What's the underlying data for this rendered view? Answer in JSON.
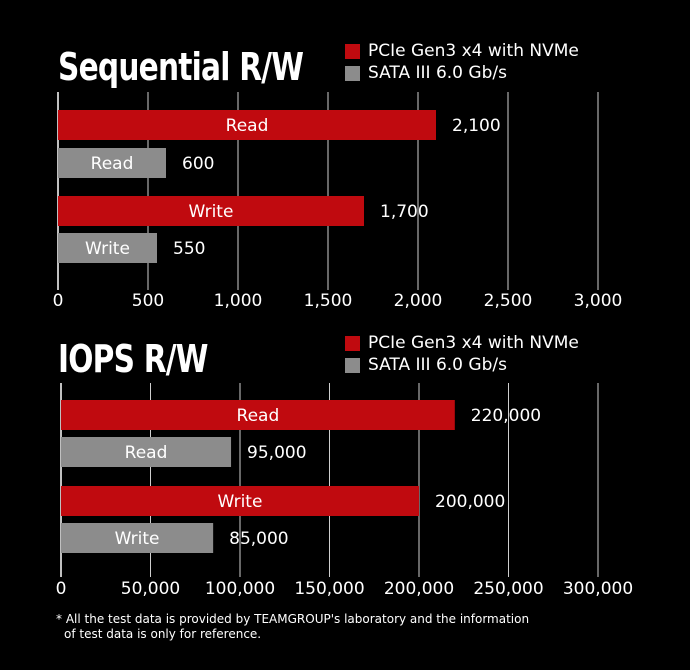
{
  "colors": {
    "primary": "#c00a0f",
    "secondary": "#8c8c8c",
    "grid": "#cfcfcf",
    "background": "#000000"
  },
  "chart_data": [
    {
      "type": "bar",
      "title": "Sequential R/W",
      "orientation": "horizontal",
      "legend": [
        "PCIe Gen3 x4 with NVMe",
        "SATA III 6.0 Gb/s"
      ],
      "legend_position": "top-right",
      "bars": [
        {
          "label": "Read",
          "series": "PCIe Gen3 x4 with NVMe",
          "value": 2100,
          "value_label": "2,100"
        },
        {
          "label": "Read",
          "series": "SATA III 6.0 Gb/s",
          "value": 600,
          "value_label": "600"
        },
        {
          "label": "Write",
          "series": "PCIe Gen3 x4 with NVMe",
          "value": 1700,
          "value_label": "1,700"
        },
        {
          "label": "Write",
          "series": "SATA III 6.0 Gb/s",
          "value": 550,
          "value_label": "550"
        }
      ],
      "xlim": [
        0,
        3000
      ],
      "xticks": [
        "0",
        "500",
        "1,000",
        "1,500",
        "2,000",
        "2,500",
        "3,000"
      ],
      "grid": true
    },
    {
      "type": "bar",
      "title": "IOPS R/W",
      "orientation": "horizontal",
      "legend": [
        "PCIe Gen3 x4 with NVMe",
        "SATA III 6.0 Gb/s"
      ],
      "legend_position": "top-right",
      "bars": [
        {
          "label": "Read",
          "series": "PCIe Gen3 x4 with NVMe",
          "value": 220000,
          "value_label": "220,000"
        },
        {
          "label": "Read",
          "series": "SATA III 6.0 Gb/s",
          "value": 95000,
          "value_label": "95,000"
        },
        {
          "label": "Write",
          "series": "PCIe Gen3 x4 with NVMe",
          "value": 200000,
          "value_label": "200,000"
        },
        {
          "label": "Write",
          "series": "SATA III 6.0 Gb/s",
          "value": 85000,
          "value_label": "85,000"
        }
      ],
      "xlim": [
        0,
        300000
      ],
      "xticks": [
        "0",
        "50,000",
        "100,000",
        "150,000",
        "200,000",
        "250,000",
        "300,000"
      ],
      "grid": true
    }
  ],
  "footnote": {
    "line1": "* All the test data is provided by TEAMGROUP's laboratory and the information",
    "line2": "of test data is only for reference."
  }
}
